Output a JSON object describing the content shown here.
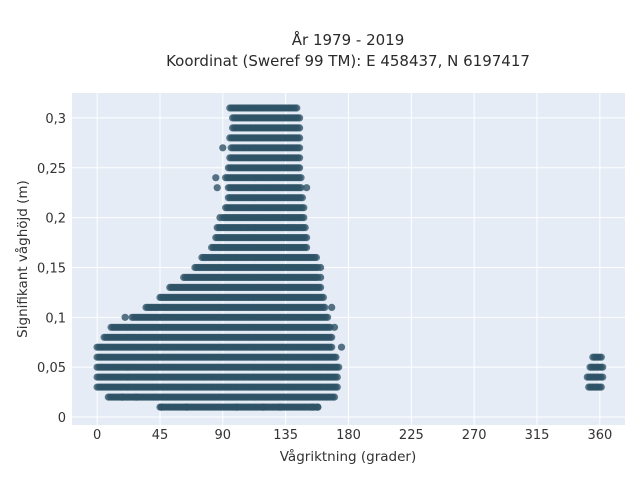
{
  "chart_data": {
    "type": "scatter",
    "title_lines": [
      "År 1979 - 2019",
      "Koordinat (Sweref 99 TM): E 458437, N 6197417"
    ],
    "xlabel": "Vågriktning (grader)",
    "ylabel": "Signifikant våghöjd (m)",
    "xlim": [
      -18,
      378
    ],
    "ylim": [
      -0.008,
      0.325
    ],
    "x_ticks": [
      0,
      45,
      90,
      135,
      180,
      225,
      270,
      315,
      360
    ],
    "x_tick_labels": [
      "0",
      "45",
      "90",
      "135",
      "180",
      "225",
      "270",
      "315",
      "360"
    ],
    "y_ticks": [
      0,
      0.05,
      0.1,
      0.15,
      0.2,
      0.25,
      0.3
    ],
    "y_tick_labels": [
      "0",
      "0,05",
      "0,1",
      "0,15",
      "0,2",
      "0,25",
      "0,3"
    ],
    "grid": true,
    "colors": {
      "marker": "#2e5266",
      "plot_bg": "#e5ecf6",
      "grid": "#ffffff"
    },
    "series": [
      {
        "bands": [
          {
            "y": 0.01,
            "xmin": 45,
            "xmax": 158
          },
          {
            "y": 0.02,
            "xmin": 8,
            "xmax": 170
          },
          {
            "y": 0.03,
            "xmin": 0,
            "xmax": 172
          },
          {
            "y": 0.04,
            "xmin": 0,
            "xmax": 172
          },
          {
            "y": 0.05,
            "xmin": 0,
            "xmax": 173
          },
          {
            "y": 0.06,
            "xmin": 0,
            "xmax": 171
          },
          {
            "y": 0.07,
            "xmin": 0,
            "xmax": 168
          },
          {
            "y": 0.08,
            "xmin": 5,
            "xmax": 168
          },
          {
            "y": 0.09,
            "xmin": 10,
            "xmax": 167
          },
          {
            "y": 0.1,
            "xmin": 25,
            "xmax": 165
          },
          {
            "y": 0.11,
            "xmin": 35,
            "xmax": 163
          },
          {
            "y": 0.12,
            "xmin": 45,
            "xmax": 162
          },
          {
            "y": 0.13,
            "xmin": 52,
            "xmax": 160
          },
          {
            "y": 0.14,
            "xmin": 62,
            "xmax": 158
          },
          {
            "y": 0.15,
            "xmin": 70,
            "xmax": 158
          },
          {
            "y": 0.16,
            "xmin": 75,
            "xmax": 157
          },
          {
            "y": 0.17,
            "xmin": 82,
            "xmax": 150
          },
          {
            "y": 0.18,
            "xmin": 85,
            "xmax": 150
          },
          {
            "y": 0.19,
            "xmin": 86,
            "xmax": 149
          },
          {
            "y": 0.2,
            "xmin": 90,
            "xmax": 148
          },
          {
            "y": 0.21,
            "xmin": 92,
            "xmax": 148
          },
          {
            "y": 0.22,
            "xmin": 94,
            "xmax": 147
          },
          {
            "y": 0.23,
            "xmin": 94,
            "xmax": 146
          },
          {
            "y": 0.24,
            "xmin": 92,
            "xmax": 146
          },
          {
            "y": 0.25,
            "xmin": 94,
            "xmax": 145
          },
          {
            "y": 0.26,
            "xmin": 95,
            "xmax": 145
          },
          {
            "y": 0.27,
            "xmin": 96,
            "xmax": 145
          },
          {
            "y": 0.28,
            "xmin": 95,
            "xmax": 145
          },
          {
            "y": 0.29,
            "xmin": 97,
            "xmax": 145
          },
          {
            "y": 0.3,
            "xmin": 97,
            "xmax": 145
          },
          {
            "y": 0.31,
            "xmin": 95,
            "xmax": 143
          },
          {
            "y": 0.03,
            "xmin": 352,
            "xmax": 361
          },
          {
            "y": 0.04,
            "xmin": 351,
            "xmax": 362
          },
          {
            "y": 0.05,
            "xmin": 353,
            "xmax": 362
          },
          {
            "y": 0.06,
            "xmin": 355,
            "xmax": 361
          }
        ],
        "points": [
          {
            "x": 18,
            "y": 0.02
          },
          {
            "x": 28,
            "y": 0.02
          },
          {
            "x": 20,
            "y": 0.1
          },
          {
            "x": 46,
            "y": 0.01
          },
          {
            "x": 64,
            "y": 0.01
          },
          {
            "x": 100,
            "y": 0.01
          },
          {
            "x": 119,
            "y": 0.01
          },
          {
            "x": 131,
            "y": 0.01
          },
          {
            "x": 154,
            "y": 0.01
          },
          {
            "x": 158,
            "y": 0.01
          },
          {
            "x": 85,
            "y": 0.24
          },
          {
            "x": 86,
            "y": 0.23
          },
          {
            "x": 88,
            "y": 0.2
          },
          {
            "x": 90,
            "y": 0.27
          },
          {
            "x": 150,
            "y": 0.23
          },
          {
            "x": 160,
            "y": 0.14
          },
          {
            "x": 160,
            "y": 0.15
          },
          {
            "x": 168,
            "y": 0.11
          },
          {
            "x": 170,
            "y": 0.09
          },
          {
            "x": 175,
            "y": 0.07
          }
        ]
      }
    ]
  }
}
